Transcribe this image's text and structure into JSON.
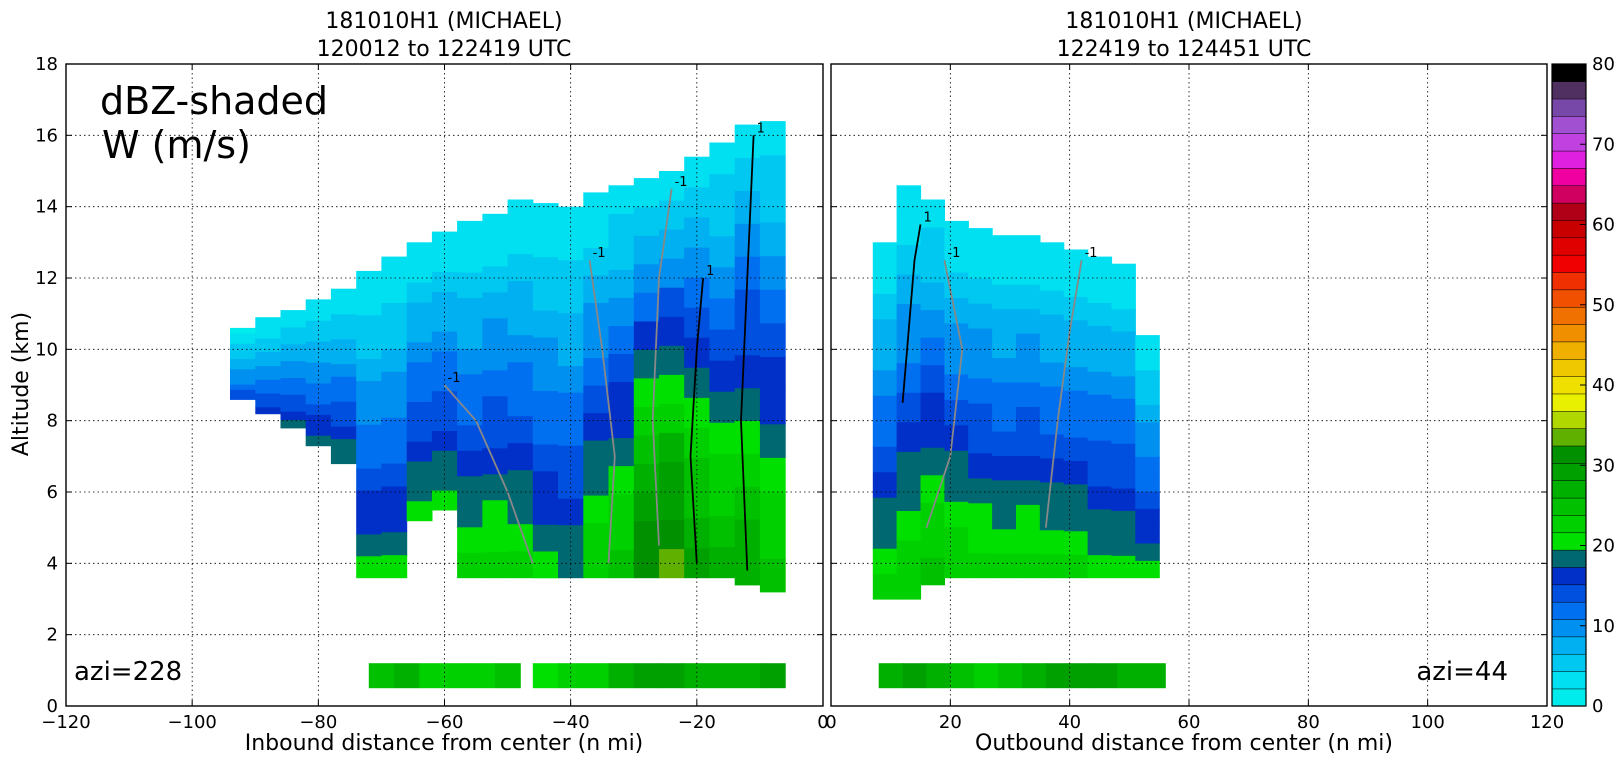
{
  "chart_data": [
    {
      "type": "heatmap",
      "title_line1": "181010H1 (MICHAEL)",
      "title_line2": "120012 to 122419 UTC",
      "xlabel": "Inbound distance from center (n mi)",
      "ylabel": "Altitude (km)",
      "xlim": [
        -120,
        0
      ],
      "ylim": [
        0,
        18
      ],
      "xticks": [
        "−120",
        "−100",
        "−80",
        "−60",
        "−40",
        "−20",
        "0"
      ],
      "yticks": [
        "0",
        "2",
        "4",
        "6",
        "8",
        "10",
        "12",
        "14",
        "16",
        "18"
      ],
      "annotation_main_1": "dBZ-shaded",
      "annotation_main_2": "W (m/s)",
      "azimuth_label": "azi=228",
      "grid": true,
      "echo_columns": [
        {
          "x": -92,
          "bottom": 8.6,
          "top": 10.6,
          "dbz": 12
        },
        {
          "x": -88,
          "bottom": 8.2,
          "top": 10.9,
          "dbz": 14
        },
        {
          "x": -84,
          "bottom": 7.8,
          "top": 11.1,
          "dbz": 15
        },
        {
          "x": -80,
          "bottom": 7.3,
          "top": 11.4,
          "dbz": 16
        },
        {
          "x": -76,
          "bottom": 6.8,
          "top": 11.7,
          "dbz": 17
        },
        {
          "x": -72,
          "bottom": 3.6,
          "top": 12.2,
          "dbz": 18
        },
        {
          "x": -68,
          "bottom": 3.6,
          "top": 12.6,
          "dbz": 18
        },
        {
          "x": -64,
          "bottom": 5.2,
          "top": 13.0,
          "dbz": 19
        },
        {
          "x": -60,
          "bottom": 5.5,
          "top": 13.3,
          "dbz": 19
        },
        {
          "x": -56,
          "bottom": 3.6,
          "top": 13.6,
          "dbz": 20
        },
        {
          "x": -52,
          "bottom": 3.6,
          "top": 13.8,
          "dbz": 21
        },
        {
          "x": -48,
          "bottom": 3.6,
          "top": 14.2,
          "dbz": 20
        },
        {
          "x": -44,
          "bottom": 3.6,
          "top": 14.1,
          "dbz": 18
        },
        {
          "x": -40,
          "bottom": 3.6,
          "top": 14.0,
          "dbz": 17
        },
        {
          "x": -36,
          "bottom": 3.6,
          "top": 14.4,
          "dbz": 22
        },
        {
          "x": -32,
          "bottom": 3.6,
          "top": 14.6,
          "dbz": 24
        },
        {
          "x": -28,
          "bottom": 3.6,
          "top": 14.8,
          "dbz": 32
        },
        {
          "x": -24,
          "bottom": 3.6,
          "top": 15.0,
          "dbz": 33
        },
        {
          "x": -20,
          "bottom": 3.6,
          "top": 15.4,
          "dbz": 28
        },
        {
          "x": -16,
          "bottom": 3.6,
          "top": 15.8,
          "dbz": 25
        },
        {
          "x": -12,
          "bottom": 3.4,
          "top": 16.3,
          "dbz": 27
        },
        {
          "x": -8,
          "bottom": 3.2,
          "top": 16.4,
          "dbz": 24
        }
      ],
      "near_surface_echo": [
        {
          "x": -70,
          "dbz": 28
        },
        {
          "x": -66,
          "dbz": 31
        },
        {
          "x": -62,
          "dbz": 26
        },
        {
          "x": -58,
          "dbz": 27
        },
        {
          "x": -54,
          "dbz": 25
        },
        {
          "x": -50,
          "dbz": 28
        },
        {
          "x": -44,
          "dbz": 24
        },
        {
          "x": -40,
          "dbz": 26
        },
        {
          "x": -36,
          "dbz": 27
        },
        {
          "x": -32,
          "dbz": 30
        },
        {
          "x": -28,
          "dbz": 33
        },
        {
          "x": -24,
          "dbz": 33
        },
        {
          "x": -20,
          "dbz": 32
        },
        {
          "x": -16,
          "dbz": 31
        },
        {
          "x": -12,
          "dbz": 32
        },
        {
          "x": -8,
          "dbz": 33
        }
      ],
      "w_contours": [
        {
          "value": "1",
          "color": "black",
          "points": [
            [
              -20,
              4.0
            ],
            [
              -21,
              7.0
            ],
            [
              -20,
              10.0
            ],
            [
              -19,
              12.0
            ]
          ]
        },
        {
          "value": "1",
          "color": "black",
          "points": [
            [
              -12,
              3.8
            ],
            [
              -13,
              8.0
            ],
            [
              -12,
              12.0
            ],
            [
              -11,
              16.0
            ]
          ]
        },
        {
          "value": "-1",
          "color": "gray",
          "points": [
            [
              -46,
              4.0
            ],
            [
              -50,
              6.0
            ],
            [
              -55,
              8.0
            ],
            [
              -60,
              9.0
            ]
          ]
        },
        {
          "value": "-1",
          "color": "gray",
          "points": [
            [
              -34,
              4.0
            ],
            [
              -33,
              7.0
            ],
            [
              -35,
              10.0
            ],
            [
              -37,
              12.5
            ]
          ]
        },
        {
          "value": "-1",
          "color": "gray",
          "points": [
            [
              -26,
              4.5
            ],
            [
              -27,
              8.0
            ],
            [
              -26,
              12.0
            ],
            [
              -24,
              14.5
            ]
          ]
        }
      ]
    },
    {
      "type": "heatmap",
      "title_line1": "181010H1 (MICHAEL)",
      "title_line2": "122419 to 124451 UTC",
      "xlabel": "Outbound distance from center (n mi)",
      "xlim": [
        0,
        120
      ],
      "ylim": [
        0,
        18
      ],
      "xticks": [
        "0",
        "20",
        "40",
        "60",
        "80",
        "100",
        "120"
      ],
      "azimuth_label": "azi=44",
      "grid": true,
      "echo_columns": [
        {
          "x": 9,
          "bottom": 3.0,
          "top": 13.0,
          "dbz": 20
        },
        {
          "x": 13,
          "bottom": 3.0,
          "top": 14.6,
          "dbz": 22
        },
        {
          "x": 17,
          "bottom": 3.4,
          "top": 14.2,
          "dbz": 24
        },
        {
          "x": 21,
          "bottom": 3.6,
          "top": 13.6,
          "dbz": 22
        },
        {
          "x": 25,
          "bottom": 3.6,
          "top": 13.4,
          "dbz": 21
        },
        {
          "x": 29,
          "bottom": 3.6,
          "top": 13.2,
          "dbz": 20
        },
        {
          "x": 33,
          "bottom": 3.6,
          "top": 13.2,
          "dbz": 21
        },
        {
          "x": 37,
          "bottom": 3.6,
          "top": 13.0,
          "dbz": 20
        },
        {
          "x": 41,
          "bottom": 3.6,
          "top": 12.8,
          "dbz": 20
        },
        {
          "x": 45,
          "bottom": 3.6,
          "top": 12.6,
          "dbz": 19
        },
        {
          "x": 49,
          "bottom": 3.6,
          "top": 12.4,
          "dbz": 19
        },
        {
          "x": 53,
          "bottom": 3.6,
          "top": 10.4,
          "dbz": 18
        }
      ],
      "near_surface_echo": [
        {
          "x": 10,
          "dbz": 30
        },
        {
          "x": 14,
          "dbz": 33
        },
        {
          "x": 18,
          "dbz": 32
        },
        {
          "x": 22,
          "dbz": 28
        },
        {
          "x": 26,
          "dbz": 27
        },
        {
          "x": 30,
          "dbz": 28
        },
        {
          "x": 34,
          "dbz": 31
        },
        {
          "x": 38,
          "dbz": 33
        },
        {
          "x": 42,
          "dbz": 34
        },
        {
          "x": 46,
          "dbz": 33
        },
        {
          "x": 50,
          "dbz": 32
        },
        {
          "x": 54,
          "dbz": 31
        }
      ],
      "w_contours": [
        {
          "value": "1",
          "color": "black",
          "points": [
            [
              12,
              8.5
            ],
            [
              13,
              10.5
            ],
            [
              14,
              12.5
            ],
            [
              15,
              13.5
            ]
          ]
        },
        {
          "value": "-1",
          "color": "gray",
          "points": [
            [
              16,
              5.0
            ],
            [
              20,
              7.0
            ],
            [
              22,
              10.0
            ],
            [
              19,
              12.5
            ]
          ]
        },
        {
          "value": "-1",
          "color": "gray",
          "points": [
            [
              36,
              5.0
            ],
            [
              38,
              8.0
            ],
            [
              40,
              10.5
            ],
            [
              42,
              12.5
            ]
          ]
        }
      ]
    }
  ],
  "colorbar": {
    "min": 0,
    "max": 80,
    "step": 2.5,
    "ticks": [
      "0",
      "10",
      "20",
      "30",
      "40",
      "50",
      "60",
      "70",
      "80"
    ],
    "colors": [
      "#00ecec",
      "#00e0f0",
      "#00c8f0",
      "#00b0f0",
      "#0090f0",
      "#0070f0",
      "#0050e0",
      "#0030c8",
      "#006870",
      "#00e000",
      "#00d000",
      "#00c000",
      "#00b000",
      "#00a000",
      "#009000",
      "#60b000",
      "#b0d800",
      "#e8f000",
      "#f0e000",
      "#f0c800",
      "#f0b000",
      "#f09000",
      "#f07000",
      "#f05000",
      "#f03000",
      "#f00000",
      "#e00000",
      "#c80000",
      "#b00018",
      "#d00060",
      "#f000a0",
      "#e020e0",
      "#c040e0",
      "#a050d0",
      "#7848a8",
      "#503060",
      "#000000"
    ]
  }
}
